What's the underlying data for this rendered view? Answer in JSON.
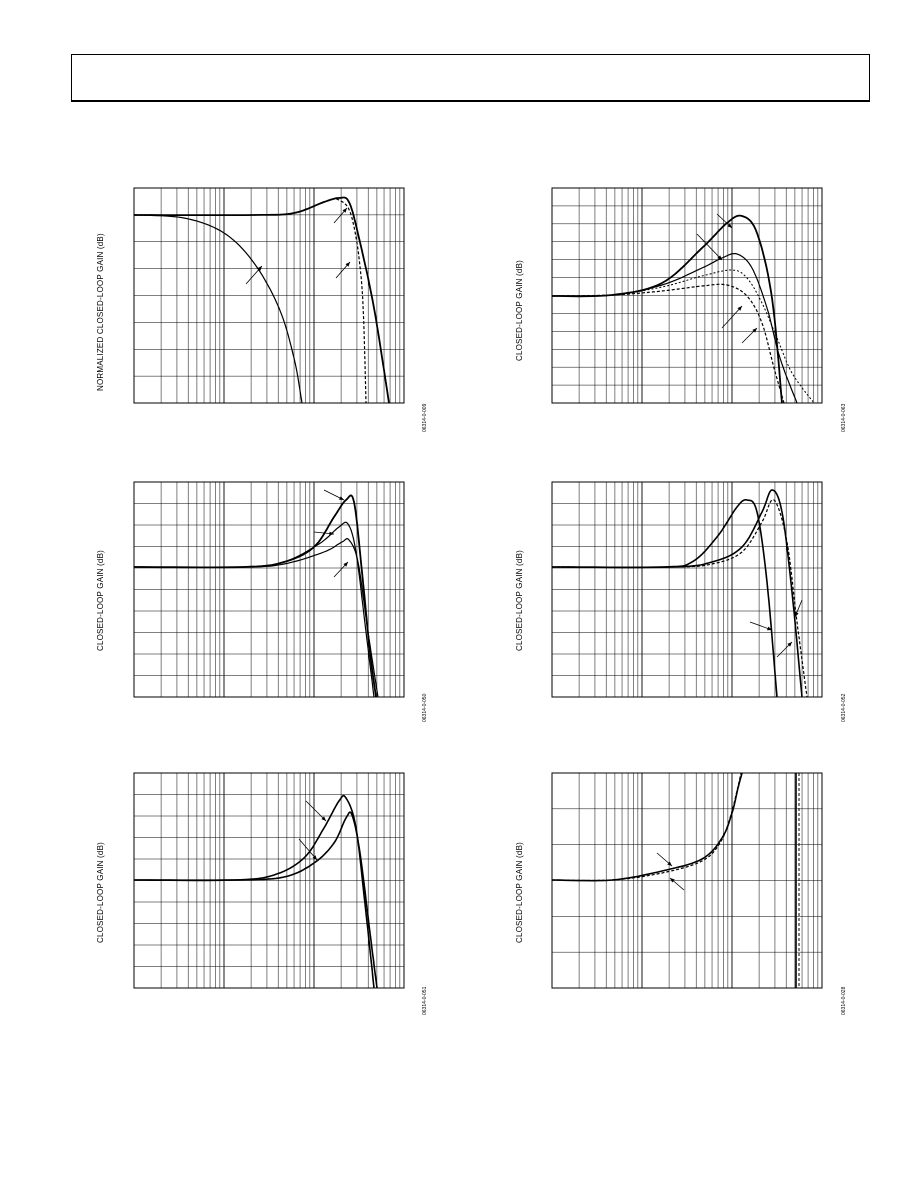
{
  "page": {
    "header_box": true
  },
  "panels": [
    {
      "id": "p1",
      "ylabel": "NORMALIZED CLOSED-LOOP GAIN (dB)",
      "figid": "06314-0-009"
    },
    {
      "id": "p2",
      "ylabel": "CLOSED-LOOP GAIN (dB)",
      "figid": "06314-0-063"
    },
    {
      "id": "p3",
      "ylabel": "CLOSED-LOOP GAIN (dB)",
      "figid": "06314-0-050"
    },
    {
      "id": "p4",
      "ylabel": "CLOSED-LOOP GAIN (dB)",
      "figid": "06314-0-052"
    },
    {
      "id": "p5",
      "ylabel": "CLOSED-LOOP GAIN (dB)",
      "figid": "06314-0-051"
    },
    {
      "id": "p6",
      "ylabel": "CLOSED-LOOP GAIN (dB)",
      "figid": "06314-0-028"
    }
  ],
  "chart_data": [
    {
      "type": "line",
      "xscale": "log",
      "series": [
        {
          "values": [
            0,
            0,
            0,
            0.1,
            0.5,
            1.4,
            0.8,
            -6,
            -20
          ]
        },
        {
          "values": [
            0,
            0,
            0,
            0.1,
            0.5,
            1.4,
            0.8,
            -10,
            -35
          ]
        },
        {
          "values": [
            0,
            -0.5,
            -2,
            -8,
            -20
          ]
        }
      ]
    },
    {
      "type": "line",
      "xscale": "log",
      "series": [
        {
          "values": [
            0,
            0.2,
            1,
            3,
            6,
            0,
            -12
          ]
        },
        {
          "values": [
            0,
            0.2,
            0.8,
            2,
            3.5,
            0,
            -12
          ]
        },
        {
          "values": [
            0,
            0.2,
            0.6,
            1.5,
            2.5,
            -2,
            -12
          ]
        },
        {
          "values": [
            0,
            0.1,
            0.4,
            0.9,
            0.5,
            -4,
            -12
          ]
        }
      ]
    },
    {
      "type": "line",
      "xscale": "log",
      "series": [
        {
          "values": [
            0,
            0,
            0.2,
            1.5,
            3,
            -2,
            -6
          ]
        },
        {
          "values": [
            0,
            0,
            0.2,
            1.2,
            2,
            -2,
            -6
          ]
        },
        {
          "values": [
            0,
            0,
            0.2,
            1,
            1.2,
            -2,
            -6
          ]
        }
      ]
    },
    {
      "type": "line",
      "xscale": "log",
      "series": [
        {
          "values": [
            0,
            0.2,
            1.5,
            3,
            -3,
            -6
          ]
        },
        {
          "values": [
            0,
            0.2,
            1,
            3.5,
            -2,
            -6
          ]
        },
        {
          "values": [
            0,
            0.1,
            0.6,
            3,
            -1,
            -6
          ]
        }
      ]
    },
    {
      "type": "line",
      "xscale": "log",
      "series": [
        {
          "values": [
            0,
            0,
            0.5,
            2,
            4,
            -2,
            -6
          ]
        },
        {
          "values": [
            0,
            0,
            0.3,
            1.2,
            3,
            -2,
            -6
          ]
        }
      ]
    },
    {
      "type": "line",
      "xscale": "log",
      "series": [
        {
          "values": [
            0,
            0.2,
            0.8,
            1.5,
            5
          ]
        },
        {
          "values": [
            0,
            0.1,
            0.6,
            1.3,
            5
          ]
        }
      ]
    }
  ]
}
